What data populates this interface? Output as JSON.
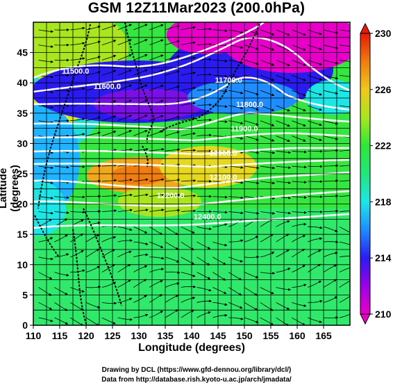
{
  "title": "GSM 12Z11Mar2023 (200.0hPa)",
  "axes": {
    "xlabel": "Longitude (degrees)",
    "ylabel": "Latitude  (degrees)",
    "xrange": [
      110,
      170
    ],
    "yrange": [
      0,
      50
    ],
    "xticks": [
      "110",
      "115",
      "120",
      "125",
      "130",
      "135",
      "140",
      "145",
      "150",
      "155",
      "160",
      "165"
    ],
    "yticks": [
      "0",
      "5",
      "10",
      "15",
      "20",
      "25",
      "30",
      "35",
      "40",
      "45"
    ]
  },
  "colorbar": {
    "range": [
      210,
      230
    ],
    "ticks": [
      "210",
      "214",
      "218",
      "222",
      "226",
      "230"
    ],
    "colors": [
      "#e600c8",
      "#9c00e6",
      "#2a1cf0",
      "#1f8cff",
      "#1fe6e6",
      "#22e67a",
      "#2fe63a",
      "#a8e620",
      "#f0c81e",
      "#f07d10",
      "#e61a0a"
    ]
  },
  "contour_labels": [
    {
      "text": "11500.0",
      "lon": 118,
      "lat": 41.5
    },
    {
      "text": "11600.0",
      "lon": 124,
      "lat": 39
    },
    {
      "text": "11700.0",
      "lon": 147,
      "lat": 40
    },
    {
      "text": "11800.0",
      "lon": 151,
      "lat": 36
    },
    {
      "text": "11900.0",
      "lon": 150,
      "lat": 32
    },
    {
      "text": "12000.0",
      "lon": 146,
      "lat": 28
    },
    {
      "text": "12100.0",
      "lon": 146,
      "lat": 24
    },
    {
      "text": "12200.0",
      "lon": 136,
      "lat": 21
    },
    {
      "text": "12400.0",
      "lon": 143,
      "lat": 17.5
    }
  ],
  "credits": {
    "line1": "Drawing by DCL (https://www.gfd-dennou.org/library/dcl/)",
    "line2": "Data from http://database.rish.kyoto-u.ac.jp/arch/jmadata/"
  }
}
